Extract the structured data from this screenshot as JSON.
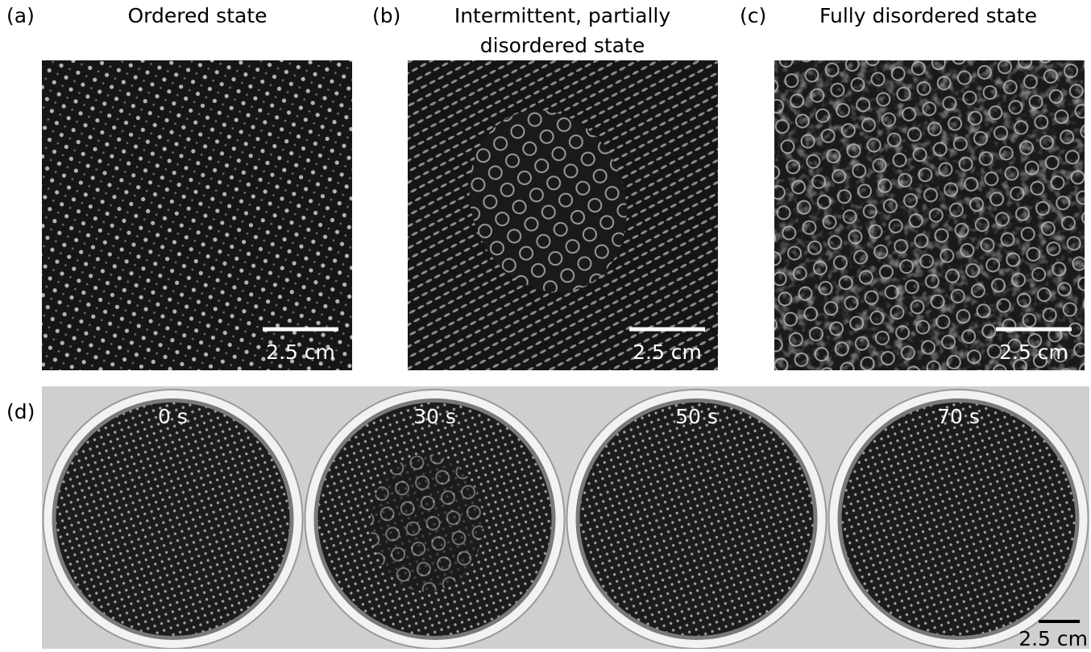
{
  "panels": [
    {
      "label": "(a)",
      "title_lines": [
        "Ordered state"
      ],
      "scale_bar": "2.5 cm"
    },
    {
      "label": "(b)",
      "title_lines": [
        "Intermittent, partially",
        "disordered state"
      ],
      "scale_bar": "2.5 cm"
    },
    {
      "label": "(c)",
      "title_lines": [
        "Fully disordered state"
      ],
      "scale_bar": "2.5 cm"
    }
  ],
  "time_series": {
    "label": "(d)",
    "frames": [
      "0 s",
      "30 s",
      "50 s",
      "70 s"
    ],
    "scale_bar": "2.5 cm"
  }
}
